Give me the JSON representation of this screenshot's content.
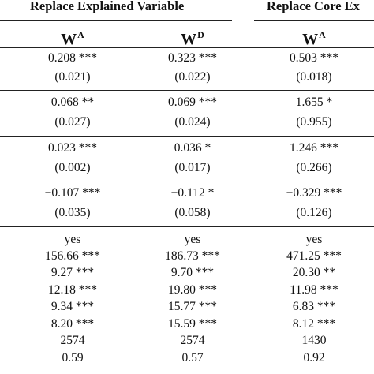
{
  "header": {
    "group1": "Replace Explained Variable",
    "group2": "Replace Core Ex",
    "columns": [
      {
        "base": "W",
        "sup": "A"
      },
      {
        "base": "W",
        "sup": "D"
      },
      {
        "base": "W",
        "sup": "A"
      }
    ]
  },
  "blocks": [
    {
      "coef": [
        "0.208 ***",
        "0.323 ***",
        "0.503 ***"
      ],
      "se": [
        "(0.021)",
        "(0.022)",
        "(0.018)"
      ]
    },
    {
      "coef": [
        "0.068 **",
        "0.069 ***",
        "1.655 *"
      ],
      "se": [
        "(0.027)",
        "(0.024)",
        "(0.955)"
      ]
    },
    {
      "coef": [
        "0.023 ***",
        "0.036 *",
        "1.246 ***"
      ],
      "se": [
        "(0.002)",
        "(0.017)",
        "(0.266)"
      ]
    },
    {
      "coef": [
        "−0.107 ***",
        "−0.112 *",
        "−0.329 ***"
      ],
      "se": [
        "(0.035)",
        "(0.058)",
        "(0.126)"
      ]
    }
  ],
  "stats": [
    [
      "yes",
      "yes",
      "yes"
    ],
    [
      "156.66 ***",
      "186.73 ***",
      "471.25 ***"
    ],
    [
      "9.27 ***",
      "9.70 ***",
      "20.30 **"
    ],
    [
      "12.18 ***",
      "19.80 ***",
      "11.98 ***"
    ],
    [
      "9.34 ***",
      "15.77 ***",
      "6.83 ***"
    ],
    [
      "8.20 ***",
      "15.59 ***",
      "8.12 ***"
    ],
    [
      "2574",
      "2574",
      "1430"
    ],
    [
      "0.59",
      "0.57",
      "0.92"
    ]
  ]
}
